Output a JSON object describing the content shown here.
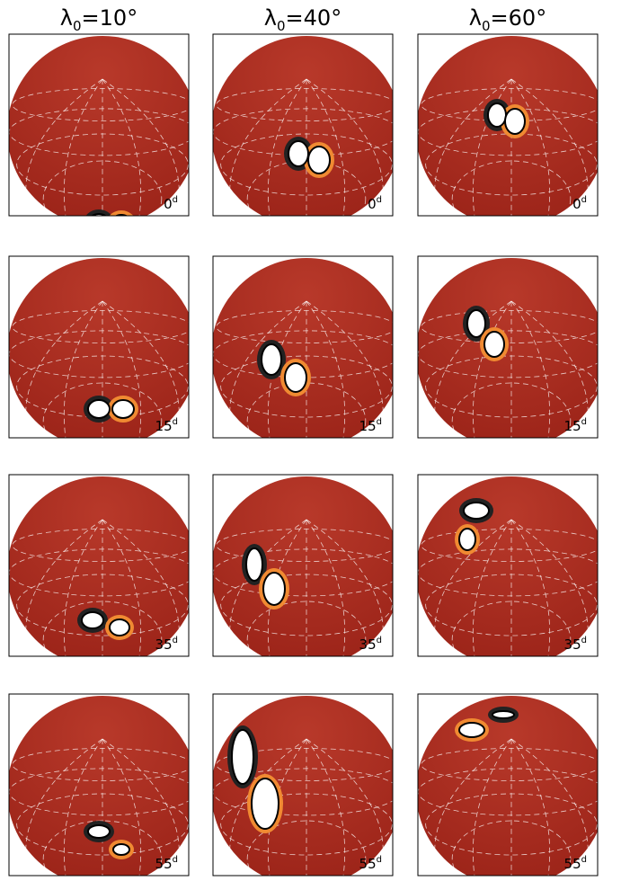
{
  "header": {
    "columns": [
      {
        "symbol": "λ",
        "subscript": "0",
        "value": "=10°"
      },
      {
        "symbol": "λ",
        "subscript": "0",
        "value": "=40°"
      },
      {
        "symbol": "λ",
        "subscript": "0",
        "value": "=60°"
      }
    ]
  },
  "rows": [
    {
      "label": "0",
      "unit": "d"
    },
    {
      "label": "15",
      "unit": "d"
    },
    {
      "label": "35",
      "unit": "d"
    },
    {
      "label": "55",
      "unit": "d"
    }
  ]
}
